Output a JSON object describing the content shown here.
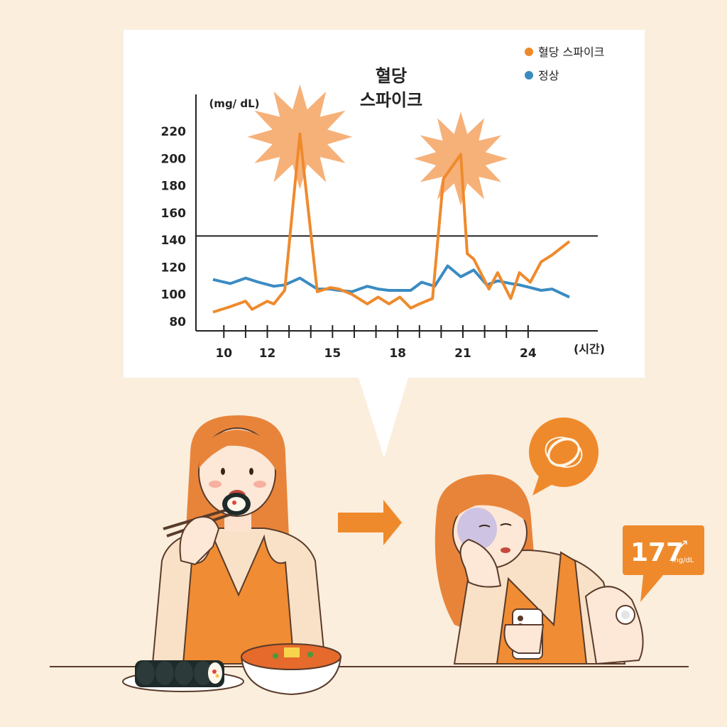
{
  "chart_data": {
    "type": "line",
    "title": "혈당\n스파이크",
    "title_lines": [
      "혈당",
      "스파이크"
    ],
    "ylabel": "(mg/ dL)",
    "xlabel": "(시간)",
    "y_ticks": [
      "220",
      "200",
      "180",
      "160",
      "140",
      "120",
      "100",
      "80"
    ],
    "x_tick_labels": [
      "10",
      "12",
      "15",
      "18",
      "21",
      "24"
    ],
    "xlim": [
      9.5,
      26.5
    ],
    "ylim": [
      75,
      235
    ],
    "threshold": 143,
    "legend_position": "top-right",
    "series": [
      {
        "name": "혈당 스파이크",
        "color": "#ef8a2c",
        "x": [
          9.5,
          10.3,
          11,
          11.3,
          12,
          12.3,
          12.8,
          13.5,
          14.3,
          14.9,
          15.3,
          15.9,
          16.6,
          17.1,
          17.6,
          18.1,
          18.6,
          19,
          19.6,
          20.1,
          20.9,
          21.2,
          21.5,
          22.2,
          22.6,
          23.2,
          23.6,
          24.1,
          24.6,
          25.1,
          25.9
        ],
        "values": [
          87,
          91,
          95,
          89,
          95,
          93,
          103,
          218,
          102,
          105,
          104,
          100,
          93,
          98,
          93,
          98,
          90,
          93,
          97,
          185,
          203,
          130,
          126,
          104,
          116,
          97,
          116,
          109,
          124,
          129,
          139
        ]
      },
      {
        "name": "정상",
        "color": "#3b8bc2",
        "x": [
          9.5,
          10.3,
          11,
          11.6,
          12.3,
          12.8,
          13.5,
          14.3,
          14.9,
          15.3,
          15.9,
          16.6,
          17.1,
          17.6,
          18.1,
          18.6,
          19.1,
          19.7,
          20.3,
          20.9,
          21.5,
          22.1,
          22.6,
          23.2,
          23.6,
          24.1,
          24.6,
          25.1,
          25.9
        ],
        "values": [
          111,
          108,
          112,
          109,
          106,
          107,
          112,
          104,
          104,
          103,
          102,
          106,
          104,
          103,
          103,
          103,
          109,
          106,
          121,
          113,
          118,
          107,
          110,
          108,
          107,
          105,
          103,
          104,
          98
        ]
      }
    ]
  },
  "glucose_display": {
    "value": "177",
    "unit": "mg/dL",
    "arrow": "↗"
  },
  "icons": [
    "dizzy-scribble-icon",
    "right-arrow-icon",
    "glucose-sensor-icon",
    "smartphone-icon"
  ],
  "colors": {
    "background": "#fbeedd",
    "accent_orange": "#ef8a2c",
    "blue": "#3b8bc2",
    "burst": "#f5a96a"
  }
}
